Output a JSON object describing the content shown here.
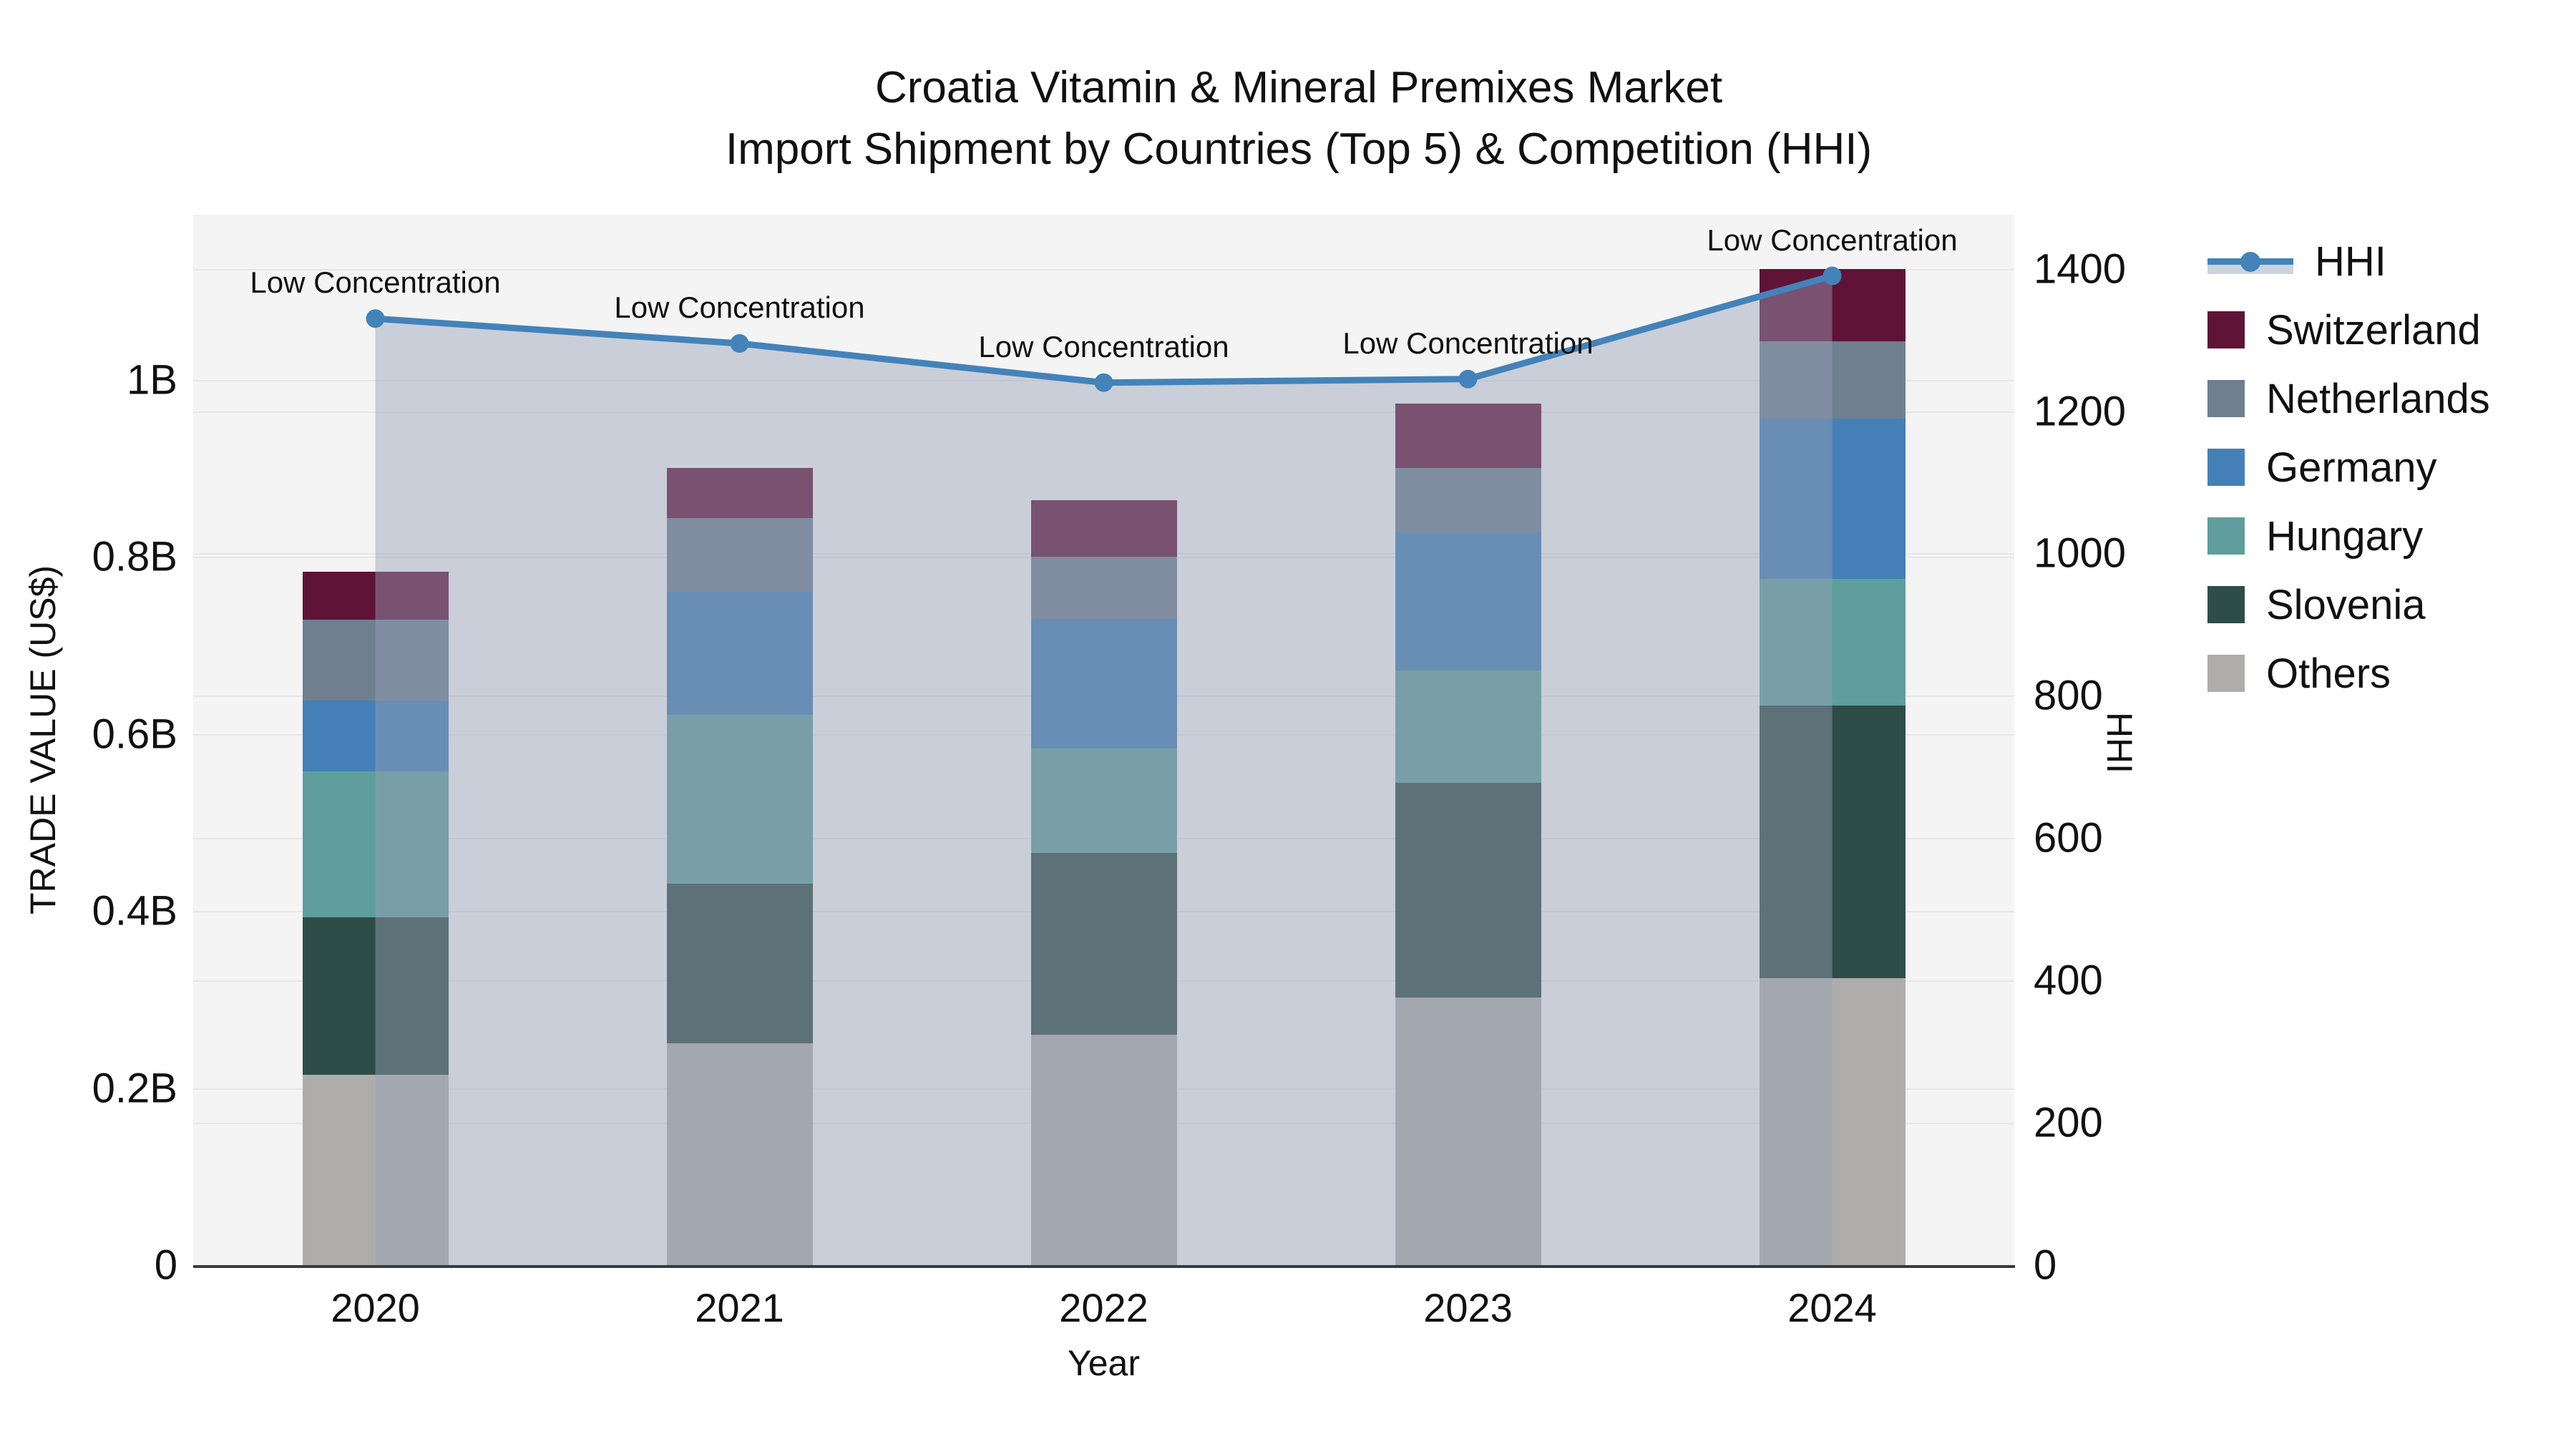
{
  "title": {
    "line1": "Croatia Vitamin & Mineral Premixes Market",
    "line2": "Import Shipment by Countries (Top 5) & Competition (HHI)"
  },
  "chart_data": {
    "type": "stacked-bar+line",
    "title": "Croatia Vitamin & Mineral Premixes Market — Import Shipment by Countries (Top 5) & Competition (HHI)",
    "categories": [
      "2020",
      "2021",
      "2022",
      "2023",
      "2024"
    ],
    "value_unit": "billion US$",
    "series": [
      {
        "name": "Others",
        "color": "#aeadab",
        "values": [
          0.215,
          0.251,
          0.26,
          0.302,
          0.324
        ]
      },
      {
        "name": "Slovenia",
        "color": "#2e4c48",
        "values": [
          0.178,
          0.18,
          0.206,
          0.243,
          0.308
        ]
      },
      {
        "name": "Hungary",
        "color": "#5f9e9c",
        "values": [
          0.165,
          0.191,
          0.118,
          0.127,
          0.143
        ]
      },
      {
        "name": "Germany",
        "color": "#4480b7",
        "values": [
          0.08,
          0.139,
          0.146,
          0.156,
          0.181
        ]
      },
      {
        "name": "Netherlands",
        "color": "#6f7f90",
        "values": [
          0.091,
          0.083,
          0.07,
          0.073,
          0.088
        ]
      },
      {
        "name": "Switzerland",
        "color": "#5f1337",
        "values": [
          0.054,
          0.057,
          0.064,
          0.072,
          0.081
        ]
      }
    ],
    "bar_totals": [
      0.783,
      0.901,
      0.864,
      0.973,
      1.125
    ],
    "line_series": {
      "name": "HHI",
      "color": "#4383b9",
      "area_fill": "rgba(150,160,182,0.45)",
      "values": [
        1330,
        1295,
        1240,
        1245,
        1390
      ],
      "point_annotations": [
        "Low Concentration",
        "Low Concentration",
        "Low Concentration",
        "Low Concentration",
        "Low Concentration"
      ]
    },
    "left_axis": {
      "title": "TRADE VALUE (US$)",
      "tick_values": [
        0,
        0.2,
        0.4,
        0.6,
        0.8,
        1.0
      ],
      "tick_labels": [
        "0",
        "0.2B",
        "0.4B",
        "0.6B",
        "0.8B",
        "1B"
      ],
      "range": [
        0,
        1.1868
      ]
    },
    "right_axis": {
      "title": "HHI",
      "tick_values": [
        0,
        200,
        400,
        600,
        800,
        1000,
        1200,
        1400
      ],
      "tick_labels": [
        "0",
        "200",
        "400",
        "600",
        "800",
        "1000",
        "1200",
        "1400"
      ],
      "range": [
        0,
        1476
      ]
    },
    "x_axis": {
      "title": "Year"
    },
    "legend_order": [
      "HHI",
      "Switzerland",
      "Netherlands",
      "Germany",
      "Hungary",
      "Slovenia",
      "Others"
    ],
    "legend_position": "right",
    "grid": true
  }
}
